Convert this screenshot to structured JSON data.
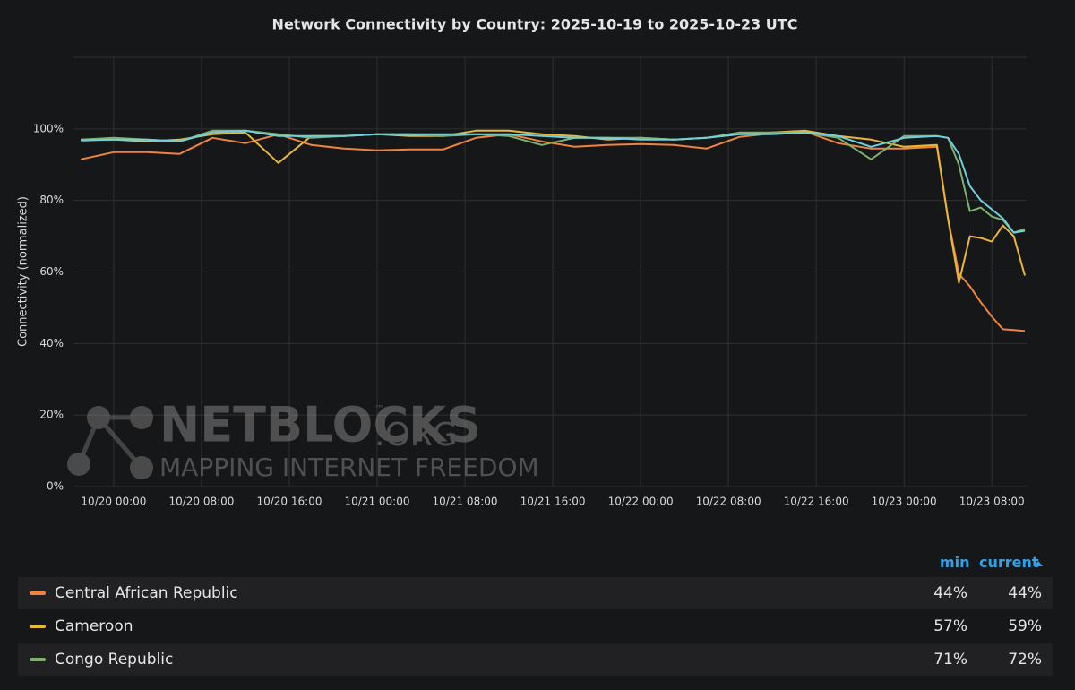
{
  "chart_data": {
    "type": "line",
    "title": "Network Connectivity by Country: 2025-10-19 to 2025-10-23 UTC",
    "y_label": "Connectivity (normalized)",
    "watermark": {
      "brand": "NETBLOCKS",
      "suffix": ".ORG",
      "mark": "™",
      "tagline": "MAPPING INTERNET FREEDOM"
    },
    "legend_headers": {
      "min": "min",
      "current": "current"
    },
    "x": [
      "10/19 21:00",
      "10/20 00:00",
      "10/20 03:00",
      "10/20 06:00",
      "10/20 09:00",
      "10/20 12:00",
      "10/20 15:00",
      "10/20 18:00",
      "10/20 21:00",
      "10/21 00:00",
      "10/21 03:00",
      "10/21 06:00",
      "10/21 09:00",
      "10/21 12:00",
      "10/21 15:00",
      "10/21 18:00",
      "10/21 21:00",
      "10/22 00:00",
      "10/22 03:00",
      "10/22 06:00",
      "10/22 09:00",
      "10/22 12:00",
      "10/22 15:00",
      "10/22 18:00",
      "10/22 21:00",
      "10/23 00:00",
      "10/23 03:00",
      "10/23 04:00",
      "10/23 05:00",
      "10/23 06:00",
      "10/23 07:00",
      "10/23 08:00",
      "10/23 09:00",
      "10/23 10:00",
      "10/23 11:00"
    ],
    "xlim": [
      "10/19 20:20",
      "10/23 11:10"
    ],
    "xticks": [
      "10/20 00:00",
      "10/20 08:00",
      "10/20 16:00",
      "10/21 00:00",
      "10/21 08:00",
      "10/21 16:00",
      "10/22 00:00",
      "10/22 08:00",
      "10/22 16:00",
      "10/23 00:00",
      "10/23 08:00"
    ],
    "ylim": [
      0,
      120
    ],
    "yticks": [
      {
        "value": 0,
        "label": "0%"
      },
      {
        "value": 20,
        "label": "20%"
      },
      {
        "value": 40,
        "label": "40%"
      },
      {
        "value": 60,
        "label": "60%"
      },
      {
        "value": 80,
        "label": "80%"
      },
      {
        "value": 100,
        "label": "100%"
      }
    ],
    "grid": true,
    "series": [
      {
        "name": "Central African Republic",
        "color": "#ef843c",
        "min": "44%",
        "current": "44%",
        "values": [
          91.5,
          93.5,
          93.5,
          93,
          97.5,
          96,
          98.5,
          95.5,
          94.5,
          94,
          94.25,
          94.25,
          97.5,
          98.5,
          96.5,
          95,
          95.5,
          95.75,
          95.5,
          94.5,
          97.75,
          98.75,
          99.25,
          96,
          94.5,
          94.5,
          95,
          75,
          59.5,
          56,
          51.5,
          47.5,
          44,
          43.8,
          43.5
        ]
      },
      {
        "name": "Cameroon",
        "color": "#eab839",
        "min": "57%",
        "current": "59%",
        "values": [
          97,
          97,
          96.5,
          97,
          98.5,
          99,
          90.5,
          98,
          98,
          98.5,
          98,
          98,
          99.5,
          99.5,
          98.5,
          98,
          97,
          97.5,
          97,
          97.5,
          98.5,
          99,
          99.5,
          98,
          97,
          95,
          95.5,
          75,
          57,
          70,
          69.5,
          68.5,
          73,
          70,
          59
        ]
      },
      {
        "name": "Congo Republic",
        "color": "#7eb26d",
        "min": "71%",
        "current": "72%",
        "values": [
          97,
          97.5,
          97,
          96.5,
          99.5,
          99.5,
          98.5,
          97.5,
          98,
          98.5,
          98.5,
          98,
          98.5,
          98,
          95.5,
          97.5,
          97.5,
          97.5,
          97,
          97.5,
          99,
          99,
          99,
          97.5,
          91.5,
          98,
          98,
          97.5,
          90,
          77,
          78,
          75.5,
          74.5,
          71,
          72
        ]
      },
      {
        "color": "#6ed0e0",
        "values": [
          96.75,
          97,
          97,
          96.5,
          99,
          99.5,
          98,
          98,
          98,
          98.5,
          98.5,
          98.5,
          98.5,
          98.5,
          98,
          97.5,
          97.5,
          97,
          97,
          97.5,
          98.5,
          98.5,
          99,
          98,
          95,
          97.5,
          98,
          97.5,
          93,
          84,
          80,
          77.5,
          75,
          71,
          71.5
        ]
      }
    ]
  }
}
